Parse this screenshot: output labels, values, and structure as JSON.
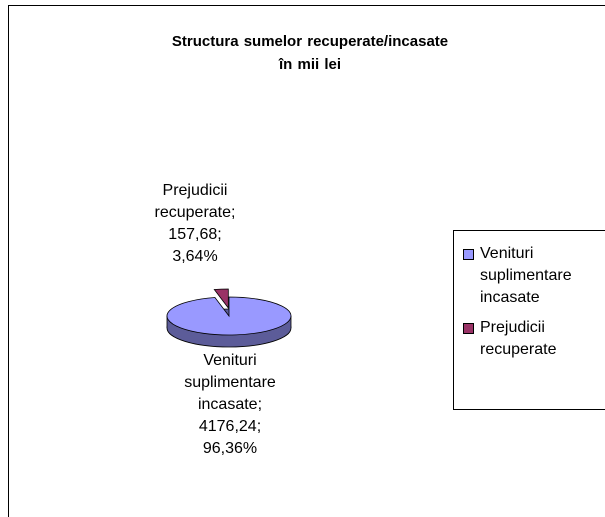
{
  "chart_data": {
    "type": "pie",
    "title": "Structura sumelor recuperate/incasate\nîn mii lei",
    "categories": [
      "Venituri suplimentare incasate",
      "Prejudicii recuperate"
    ],
    "values": [
      4176.24,
      157.68
    ],
    "value_labels": [
      "Venituri suplimentare incasate; 4176,24; 96,36%",
      "Prejudicii recuperate; 157,68; 3,64%"
    ],
    "colors": [
      "#9999ff",
      "#993366"
    ],
    "legend": "right"
  }
}
